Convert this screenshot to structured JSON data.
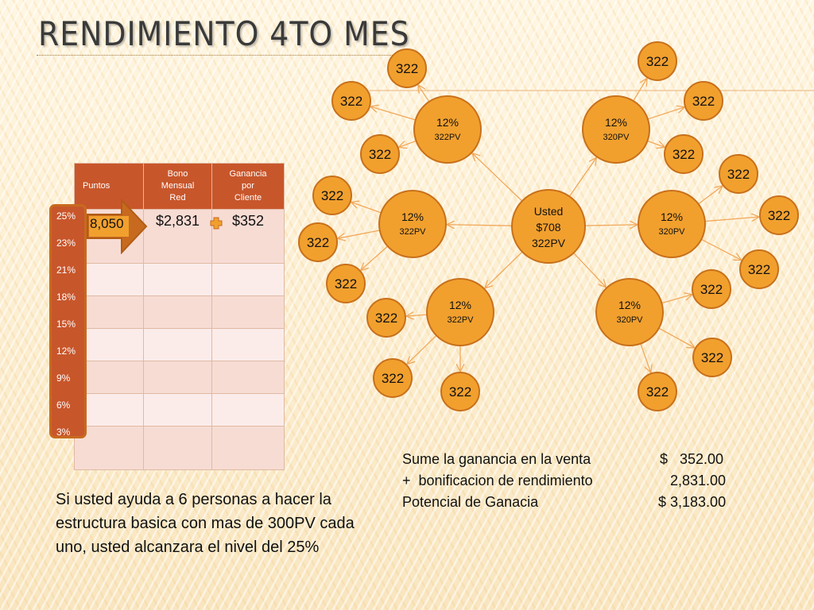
{
  "title": "RENDIMIENTO 4TO MES",
  "table": {
    "headers": {
      "col1": "Puntos",
      "col2": [
        "Bono",
        "Mensual",
        "Red"
      ],
      "col3": [
        "Ganancia",
        "por",
        "Cliente"
      ]
    },
    "bono_value": "$2,831",
    "ganancia_value": "$352",
    "levels": [
      "25%",
      "23%",
      "21%",
      "18%",
      "15%",
      "12%",
      "9%",
      "6%",
      "3%"
    ],
    "points_value": "8,050"
  },
  "network": {
    "center": {
      "line1": "Usted",
      "line2": "$708",
      "line3": "322PV"
    },
    "branches": [
      {
        "pct": "12%",
        "pv": "322PV",
        "leaves": [
          "322",
          "322",
          "322"
        ]
      },
      {
        "pct": "12%",
        "pv": "320PV",
        "leaves": [
          "322",
          "322",
          "322"
        ]
      },
      {
        "pct": "12%",
        "pv": "322PV",
        "leaves": [
          "322",
          "322",
          "322"
        ]
      },
      {
        "pct": "12%",
        "pv": "320PV",
        "leaves": [
          "322",
          "322",
          "322"
        ]
      },
      {
        "pct": "12%",
        "pv": "322PV",
        "leaves": [
          "322",
          "322",
          "322"
        ]
      },
      {
        "pct": "12%",
        "pv": "320PV",
        "leaves": [
          "322",
          "322",
          "322"
        ]
      }
    ]
  },
  "paragraph": "Si usted ayuda a 6 personas a hacer la estructura basica con mas de 300PV cada uno, usted alcanzara el nivel del 25%",
  "summary": {
    "row1_label": "Sume la ganancia en la venta",
    "row1_value": "$   352.00",
    "row2_label": "+  bonificacion de rendimiento",
    "row2_value": "2,831.00",
    "row3_label": "Potencial de Ganacia",
    "row3_value": "$ 3,183.00"
  },
  "colors": {
    "node_fill": "#f1a02e",
    "node_stroke": "#c8701a",
    "table_header": "#c8562b",
    "arrow": "#c76a1f"
  }
}
